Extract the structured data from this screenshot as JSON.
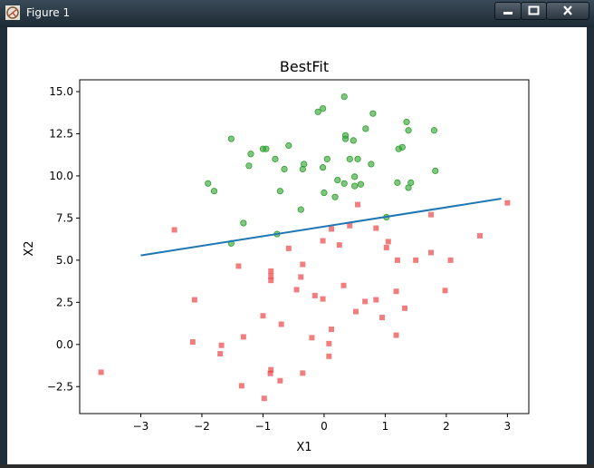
{
  "window": {
    "title": "Figure 1"
  },
  "chart_data": {
    "type": "scatter",
    "title": "BestFit",
    "xlabel": "X1",
    "ylabel": "X2",
    "xlim": [
      -4,
      3.35
    ],
    "ylim": [
      -4.1,
      15.7
    ],
    "xticks": [
      -3,
      -2,
      -1,
      0,
      1,
      2,
      3
    ],
    "xtick_labels": [
      "−3",
      "−2",
      "−1",
      "0",
      "1",
      "2",
      "3"
    ],
    "yticks": [
      -2.5,
      0,
      2.5,
      5,
      7.5,
      10,
      12.5,
      15
    ],
    "ytick_labels": [
      "−2.5",
      "0.0",
      "2.5",
      "5.0",
      "7.5",
      "10.0",
      "12.5",
      "15.0"
    ],
    "grid": false,
    "colors": {
      "class1": "#2ca02c",
      "class0": "#e8393b",
      "line": "#1f77b4"
    },
    "series": [
      {
        "marker": "circle",
        "color": "#2ca02c",
        "points": [
          [
            0.33,
            14.7
          ],
          [
            -0.1,
            13.8
          ],
          [
            -0.02,
            14.0
          ],
          [
            0.8,
            13.7
          ],
          [
            1.35,
            13.2
          ],
          [
            1.38,
            12.7
          ],
          [
            1.8,
            12.7
          ],
          [
            0.68,
            12.8
          ],
          [
            0.35,
            12.4
          ],
          [
            0.35,
            12.2
          ],
          [
            0.48,
            12.1
          ],
          [
            -1.52,
            12.2
          ],
          [
            -0.58,
            11.8
          ],
          [
            -1.0,
            11.6
          ],
          [
            -0.95,
            11.6
          ],
          [
            -1.2,
            11.3
          ],
          [
            -0.8,
            11.0
          ],
          [
            0.05,
            11.0
          ],
          [
            0.42,
            11.0
          ],
          [
            0.55,
            11.0
          ],
          [
            1.28,
            11.7
          ],
          [
            1.22,
            11.6
          ],
          [
            0.77,
            10.7
          ],
          [
            -0.33,
            10.7
          ],
          [
            -1.23,
            10.6
          ],
          [
            -0.65,
            10.4
          ],
          [
            -0.35,
            10.4
          ],
          [
            -0.02,
            10.5
          ],
          [
            1.82,
            10.3
          ],
          [
            0.5,
            9.95
          ],
          [
            0.22,
            9.75
          ],
          [
            0.33,
            9.55
          ],
          [
            0.5,
            9.4
          ],
          [
            0.6,
            9.5
          ],
          [
            1.2,
            9.6
          ],
          [
            1.42,
            9.6
          ],
          [
            1.38,
            9.3
          ],
          [
            -1.9,
            9.55
          ],
          [
            -1.8,
            9.1
          ],
          [
            -0.72,
            9.1
          ],
          [
            0.0,
            9.0
          ],
          [
            0.18,
            8.75
          ],
          [
            -0.38,
            8.0
          ],
          [
            1.02,
            7.55
          ],
          [
            -1.32,
            7.2
          ],
          [
            -1.52,
            6.0
          ],
          [
            -0.77,
            6.55
          ]
        ]
      },
      {
        "marker": "square",
        "color": "#e8393b",
        "points": [
          [
            3.0,
            8.4
          ],
          [
            0.55,
            8.3
          ],
          [
            1.75,
            7.7
          ],
          [
            -2.45,
            6.8
          ],
          [
            0.42,
            7.05
          ],
          [
            0.85,
            6.9
          ],
          [
            0.12,
            6.85
          ],
          [
            1.05,
            6.1
          ],
          [
            1.02,
            5.75
          ],
          [
            -0.02,
            6.15
          ],
          [
            0.25,
            5.9
          ],
          [
            -0.58,
            5.7
          ],
          [
            1.75,
            5.45
          ],
          [
            2.55,
            6.45
          ],
          [
            1.2,
            5.0
          ],
          [
            1.5,
            5.0
          ],
          [
            2.07,
            5.0
          ],
          [
            -1.4,
            4.65
          ],
          [
            -0.35,
            4.75
          ],
          [
            -0.87,
            4.35
          ],
          [
            -0.87,
            4.05
          ],
          [
            -0.87,
            3.8
          ],
          [
            -0.38,
            4.0
          ],
          [
            -0.45,
            3.25
          ],
          [
            0.32,
            3.5
          ],
          [
            1.18,
            3.15
          ],
          [
            1.98,
            3.2
          ],
          [
            -2.12,
            2.65
          ],
          [
            -0.15,
            2.9
          ],
          [
            -0.02,
            2.7
          ],
          [
            0.67,
            2.55
          ],
          [
            0.85,
            2.65
          ],
          [
            1.32,
            2.15
          ],
          [
            0.52,
            1.95
          ],
          [
            0.95,
            1.6
          ],
          [
            -1.0,
            1.7
          ],
          [
            -0.7,
            1.2
          ],
          [
            0.12,
            0.9
          ],
          [
            1.18,
            0.55
          ],
          [
            -1.32,
            0.45
          ],
          [
            -0.2,
            0.4
          ],
          [
            -2.15,
            0.15
          ],
          [
            -1.68,
            -0.05
          ],
          [
            0.08,
            0.05
          ],
          [
            -1.7,
            -0.55
          ],
          [
            0.08,
            -0.7
          ],
          [
            -3.65,
            -1.65
          ],
          [
            -0.87,
            -1.5
          ],
          [
            -0.88,
            -1.72
          ],
          [
            -0.35,
            -1.7
          ],
          [
            -0.72,
            -2.15
          ],
          [
            -1.35,
            -2.45
          ],
          [
            -0.98,
            -3.2
          ]
        ]
      }
    ],
    "fit_line": {
      "x": [
        -3.0,
        2.9
      ],
      "y": [
        5.28,
        8.65
      ]
    }
  }
}
